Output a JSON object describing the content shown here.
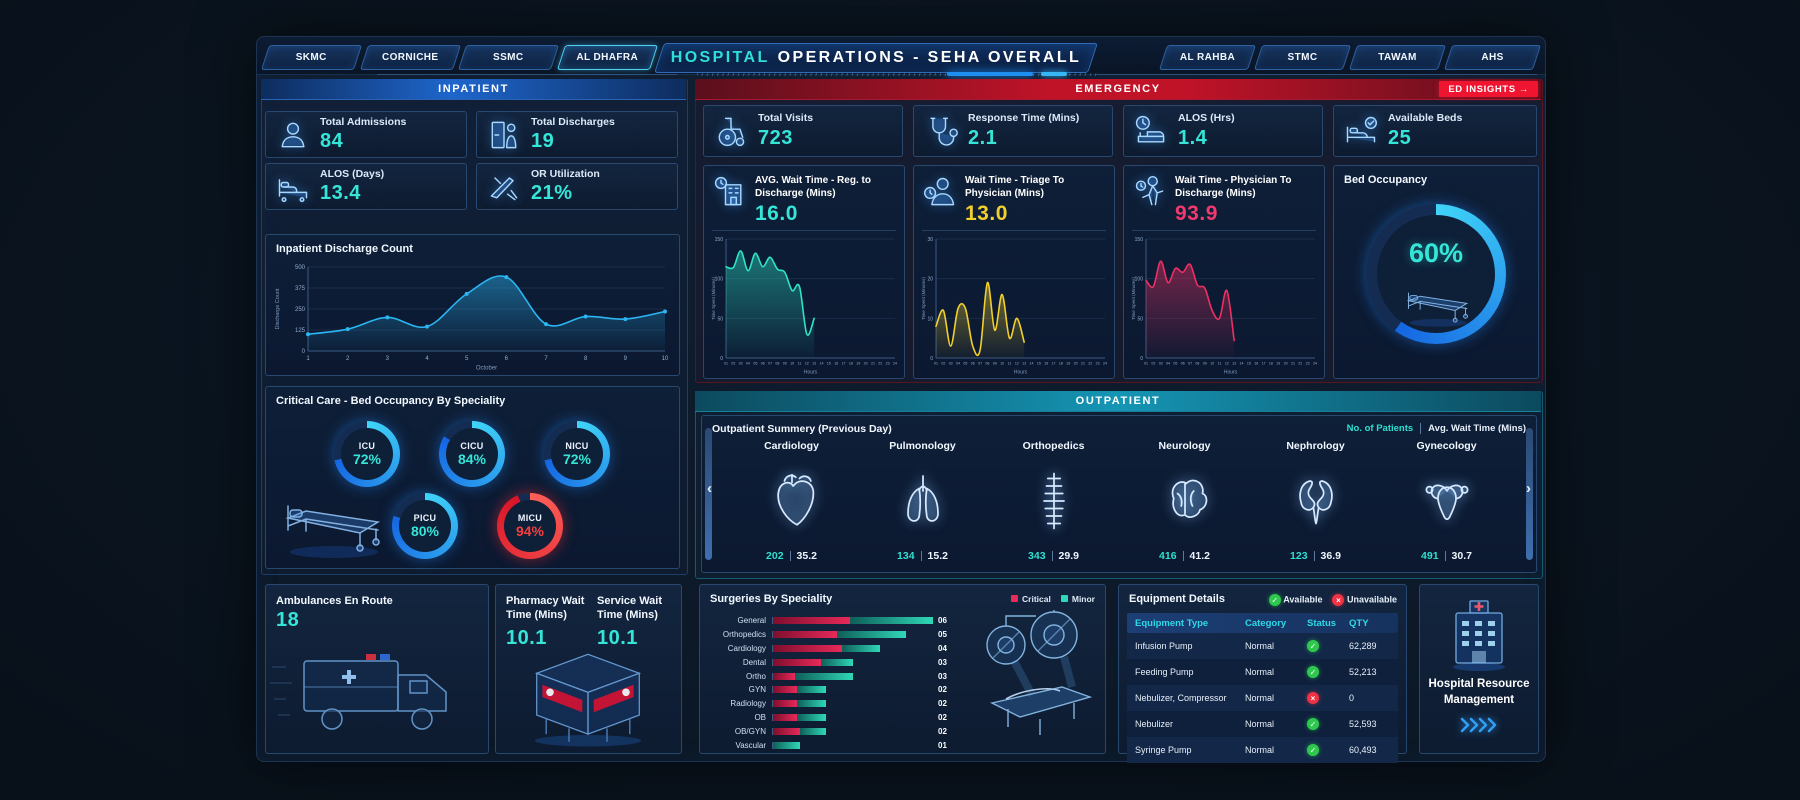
{
  "colors": {
    "accent_cyan": "#35e6d8",
    "accent_yellow": "#f2d02c",
    "accent_pink": "#f23a6e",
    "alert_red": "#ef1430",
    "arc_blue": "#1565e2",
    "available_green": "#2fc84e",
    "unavailable_red": "#ee3344"
  },
  "header": {
    "title_accent": "HOSPITAL",
    "title_rest": "OPERATIONS - SEHA OVERALL",
    "left_tabs": [
      {
        "label": "SKMC"
      },
      {
        "label": "CORNICHE"
      },
      {
        "label": "SSMC"
      },
      {
        "label": "AL DHAFRA",
        "active": true
      }
    ],
    "right_tabs": [
      {
        "label": "AL RAHBA"
      },
      {
        "label": "STMC"
      },
      {
        "label": "TAWAM"
      },
      {
        "label": "AHS"
      }
    ]
  },
  "inpatient": {
    "section_label": "INPATIENT",
    "kpis": [
      {
        "label": "Total Admissions",
        "value": "84",
        "icon": "person-icon"
      },
      {
        "label": "Total Discharges",
        "value": "19",
        "icon": "discharge-door-icon"
      },
      {
        "label": "ALOS (Days)",
        "value": "13.4",
        "icon": "hospital-bed-icon"
      },
      {
        "label": "OR Utilization",
        "value": "21%",
        "icon": "surgical-tools-icon"
      }
    ],
    "critical_care": {
      "title": "Critical Care - Bed Occupancy By Speciality",
      "gauges": [
        {
          "name": "ICU",
          "pct": 72
        },
        {
          "name": "CICU",
          "pct": 84
        },
        {
          "name": "NICU",
          "pct": 72
        },
        {
          "name": "PICU",
          "pct": 80
        },
        {
          "name": "MICU",
          "pct": 94,
          "alert": true
        }
      ]
    }
  },
  "emergency": {
    "section_label": "EMERGENCY",
    "ed_insights_label": "ED INSIGHTS →",
    "kpis": [
      {
        "label": "Total Visits",
        "value": "723",
        "icon": "wheelchair-icon"
      },
      {
        "label": "Response Time (Mins)",
        "value": "2.1",
        "icon": "stethoscope-icon"
      },
      {
        "label": "ALOS (Hrs)",
        "value": "1.4",
        "icon": "bed-clock-icon"
      },
      {
        "label": "Available Beds",
        "value": "25",
        "icon": "bed-check-icon"
      }
    ],
    "bed_occupancy": {
      "title": "Bed Occupancy",
      "pct": 60,
      "pct_label": "60%"
    }
  },
  "outpatient": {
    "section_label": "OUTPATIENT",
    "panel_title": "Outpatient Summery (Previous Day)",
    "toggle": {
      "patients": "No. of Patients",
      "wait": "Avg. Wait Time (Mins)"
    },
    "specialties": [
      {
        "name": "Cardiology",
        "patients": "202",
        "wait": "35.2",
        "icon": "heart-icon"
      },
      {
        "name": "Pulmonology",
        "patients": "134",
        "wait": "15.2",
        "icon": "lungs-icon"
      },
      {
        "name": "Orthopedics",
        "patients": "343",
        "wait": "29.9",
        "icon": "spine-icon"
      },
      {
        "name": "Neurology",
        "patients": "416",
        "wait": "41.2",
        "icon": "brain-icon"
      },
      {
        "name": "Nephrology",
        "patients": "123",
        "wait": "36.9",
        "icon": "kidneys-icon"
      },
      {
        "name": "Gynecology",
        "patients": "491",
        "wait": "30.7",
        "icon": "uterus-icon"
      }
    ]
  },
  "bottom": {
    "ambulances": {
      "label": "Ambulances En Route",
      "value": "18"
    },
    "pharmacy": {
      "label": "Pharmacy Wait Time (Mins)",
      "value": "10.1"
    },
    "service": {
      "label": "Service Wait Time (Mins)",
      "value": "10.1"
    },
    "hrm": {
      "label": "Hospital Resource Management"
    }
  },
  "equipment": {
    "title": "Equipment Details",
    "legend": {
      "available": "Available",
      "unavailable": "Unavailable"
    },
    "columns": [
      "Equipment Type",
      "Category",
      "Status",
      "QTY"
    ],
    "rows": [
      {
        "type": "Infusion Pump",
        "category": "Normal",
        "status": "available",
        "qty": "62,289"
      },
      {
        "type": "Feeding Pump",
        "category": "Normal",
        "status": "available",
        "qty": "52,213"
      },
      {
        "type": "Nebulizer, Compressor",
        "category": "Normal",
        "status": "unavailable",
        "qty": "0"
      },
      {
        "type": "Nebulizer",
        "category": "Normal",
        "status": "available",
        "qty": "52,593"
      },
      {
        "type": "Syringe Pump",
        "category": "Normal",
        "status": "available",
        "qty": "60,493"
      }
    ]
  },
  "chart_data": [
    {
      "id": "inpatient-discharge-count",
      "type": "line",
      "title": "Inpatient Discharge Count",
      "xlabel": "October",
      "ylabel": "Discharge Count",
      "x_ticks": [
        "1",
        "2",
        "3",
        "4",
        "5",
        "6",
        "7",
        "8",
        "9",
        "10"
      ],
      "values": [
        100,
        130,
        200,
        145,
        340,
        440,
        160,
        205,
        190,
        235
      ],
      "ylim": [
        0,
        500
      ],
      "yticks": [
        0,
        125,
        250,
        375,
        500
      ],
      "color": "#2bb5f2",
      "grid": true
    },
    {
      "id": "avg-wait-reg-to-discharge",
      "type": "area",
      "title": "AVG. Wait Time - Reg. to Discharge (Mins)",
      "headline": "16.0",
      "ylabel": "Time Spent (Minutes)",
      "xlabel": "Hours",
      "x_ticks": [
        "01",
        "02",
        "03",
        "04",
        "05",
        "06",
        "07",
        "08",
        "09",
        "10",
        "11",
        "12",
        "13",
        "14",
        "15",
        "16",
        "17",
        "18",
        "19",
        "20",
        "21",
        "22",
        "23",
        "24"
      ],
      "values": [
        115,
        114,
        135,
        110,
        132,
        115,
        127,
        112,
        108,
        85,
        90,
        30,
        50
      ],
      "ylim": [
        0,
        150
      ],
      "yticks": [
        0,
        50,
        100,
        150
      ],
      "color": "#2de4c6",
      "icon": "building-clock-icon"
    },
    {
      "id": "wait-triage-to-physician",
      "type": "area",
      "title": "Wait Time - Triage To Physician (Mins)",
      "headline": "13.0",
      "ylabel": "Time Spent (Minutes)",
      "xlabel": "Hours",
      "x_ticks": [
        "01",
        "02",
        "03",
        "04",
        "05",
        "06",
        "07",
        "08",
        "09",
        "10",
        "11",
        "12",
        "13",
        "14",
        "15",
        "16",
        "17",
        "18",
        "19",
        "20",
        "21",
        "22",
        "23",
        "24"
      ],
      "values": [
        8,
        12,
        3,
        12.5,
        12.5,
        3,
        2,
        19,
        7,
        16,
        5,
        10,
        4
      ],
      "ylim": [
        0,
        30
      ],
      "yticks": [
        0,
        10,
        20,
        30
      ],
      "color": "#f2d02c",
      "icon": "doctor-clock-icon"
    },
    {
      "id": "wait-physician-to-discharge",
      "type": "area",
      "title": "Wait Time - Physician To Discharge (Mins)",
      "headline": "93.9",
      "ylabel": "Time Spent (Minutes)",
      "xlabel": "Hours",
      "x_ticks": [
        "01",
        "02",
        "03",
        "04",
        "05",
        "06",
        "07",
        "08",
        "09",
        "10",
        "11",
        "12",
        "13",
        "14",
        "15",
        "16",
        "17",
        "18",
        "19",
        "20",
        "21",
        "22",
        "23",
        "24"
      ],
      "values": [
        98,
        90,
        122,
        95,
        113,
        108,
        118,
        92,
        88,
        60,
        50,
        85,
        22
      ],
      "ylim": [
        0,
        150
      ],
      "yticks": [
        0,
        50,
        100,
        150
      ],
      "color": "#ee2f63",
      "icon": "walking-clock-icon"
    },
    {
      "id": "surgeries-by-speciality",
      "type": "bar",
      "title": "Surgeries By Speciality",
      "legend": [
        "Critical",
        "Minor"
      ],
      "categories": [
        "General",
        "Orthopedics",
        "Cardiology",
        "Dental",
        "Ortho",
        "GYN",
        "Radiology",
        "OB",
        "OB/GYN",
        "Vascular"
      ],
      "value_labels": [
        "06",
        "05",
        "04",
        "03",
        "03",
        "02",
        "02",
        "02",
        "02",
        "01"
      ],
      "totals": [
        6,
        5,
        4,
        3,
        3,
        2,
        2,
        2,
        2,
        1
      ],
      "critical_fraction": [
        0.48,
        0.48,
        0.65,
        0.6,
        0.28,
        0.45,
        0.45,
        0.45,
        0.5,
        0
      ],
      "series": [
        {
          "name": "Critical",
          "values": [
            2.9,
            2.4,
            2.6,
            1.8,
            0.8,
            0.9,
            0.9,
            0.9,
            1.0,
            0
          ]
        },
        {
          "name": "Minor",
          "values": [
            3.1,
            2.6,
            1.4,
            1.2,
            2.2,
            1.1,
            1.1,
            1.1,
            1.0,
            1.0
          ]
        }
      ],
      "colors": {
        "critical": "#e8295a",
        "minor": "#2fd8b8"
      }
    }
  ]
}
